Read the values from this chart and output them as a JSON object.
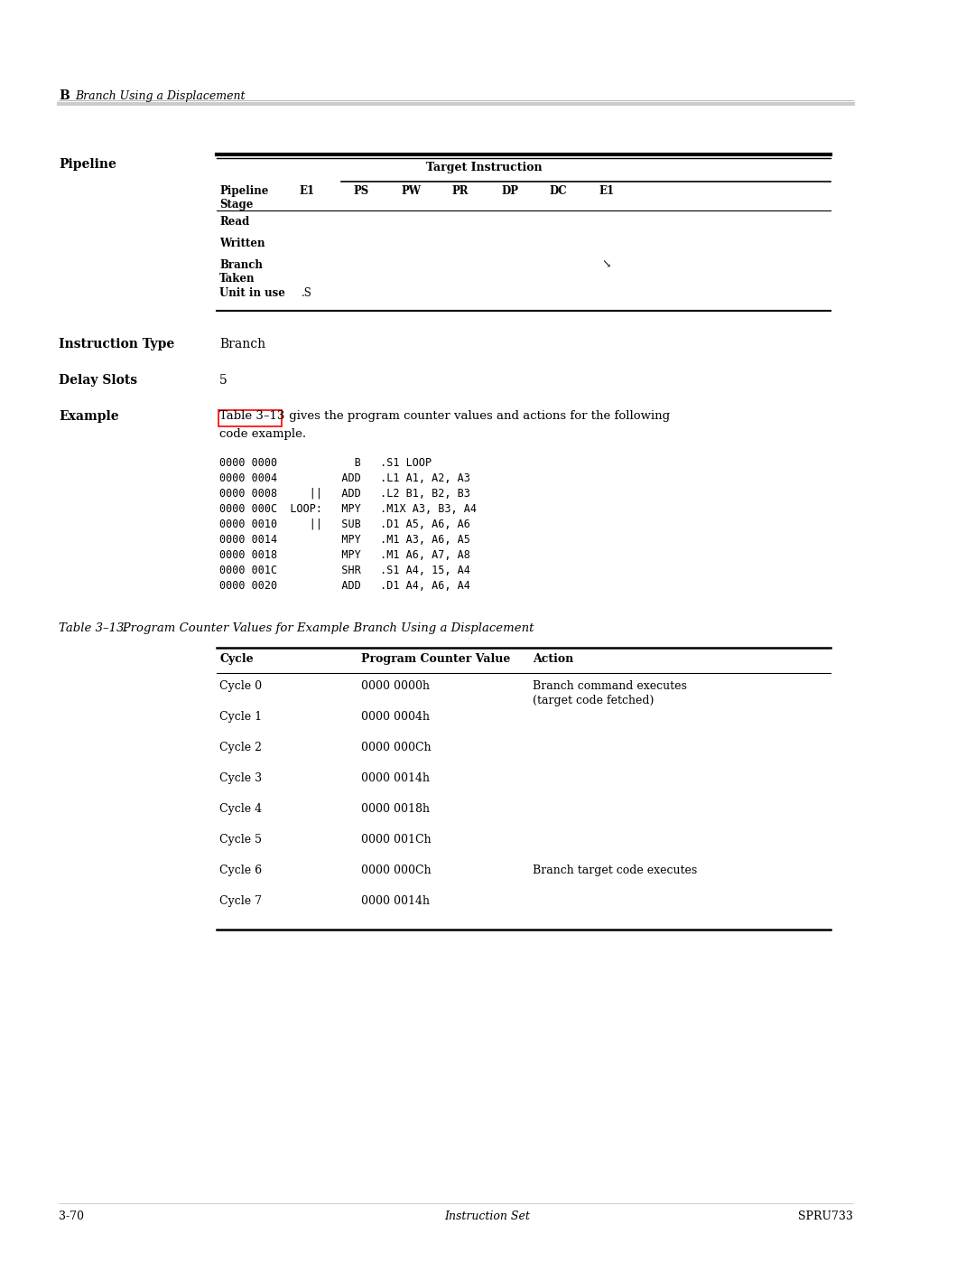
{
  "bg_color": "#ffffff",
  "section_label": "B",
  "section_title": "Branch Using a Displacement",
  "pipeline_label": "Pipeline",
  "target_instruction_label": "Target Instruction",
  "col_headers": [
    "E1",
    "PS",
    "PW",
    "PR",
    "DP",
    "DC",
    "E1"
  ],
  "pipeline_stage_label": "Pipeline\nStage",
  "row_labels": [
    "Read",
    "Written",
    "Branch\nTaken",
    "Unit in use"
  ],
  "unit_in_use_value": ".S",
  "branch_taken_marker": "⨿",
  "instruction_type_label": "Instruction Type",
  "instruction_type_value": "Branch",
  "delay_slots_label": "Delay Slots",
  "delay_slots_value": "5",
  "example_label": "Example",
  "example_link_text": "Table 3–13",
  "example_text_after": " gives the program counter values and actions for the following",
  "example_text_line2": "code example.",
  "code_lines": [
    "0000 0000            B   .S1 LOOP",
    "0000 0004          ADD   .L1 A1, A2, A3",
    "0000 0008     ||   ADD   .L2 B1, B2, B3",
    "0000 000C  LOOP:   MPY   .M1X A3, B3, A4",
    "0000 0010     ||   SUB   .D1 A5, A6, A6",
    "0000 0014          MPY   .M1 A3, A6, A5",
    "0000 0018          MPY   .M1 A6, A7, A8",
    "0000 001C          SHR   .S1 A4, 15, A4",
    "0000 0020          ADD   .D1 A4, A6, A4"
  ],
  "table_caption_prefix": "Table 3–13.",
  "table_caption_rest": "   Program Counter Values for Example Branch Using a Displacement",
  "table_headers": [
    "Cycle",
    "Program Counter Value",
    "Action"
  ],
  "table_rows": [
    [
      "Cycle 0",
      "0000 0000h",
      "Branch command executes\n(target code fetched)"
    ],
    [
      "Cycle 1",
      "0000 0004h",
      ""
    ],
    [
      "Cycle 2",
      "0000 000Ch",
      ""
    ],
    [
      "Cycle 3",
      "0000 0014h",
      ""
    ],
    [
      "Cycle 4",
      "0000 0018h",
      ""
    ],
    [
      "Cycle 5",
      "0000 001Ch",
      ""
    ],
    [
      "Cycle 6",
      "0000 000Ch",
      "Branch target code executes"
    ],
    [
      "Cycle 7",
      "0000 0014h",
      ""
    ]
  ],
  "footer_left": "3-70",
  "footer_center": "Instruction Set",
  "footer_right": "SPRU733"
}
